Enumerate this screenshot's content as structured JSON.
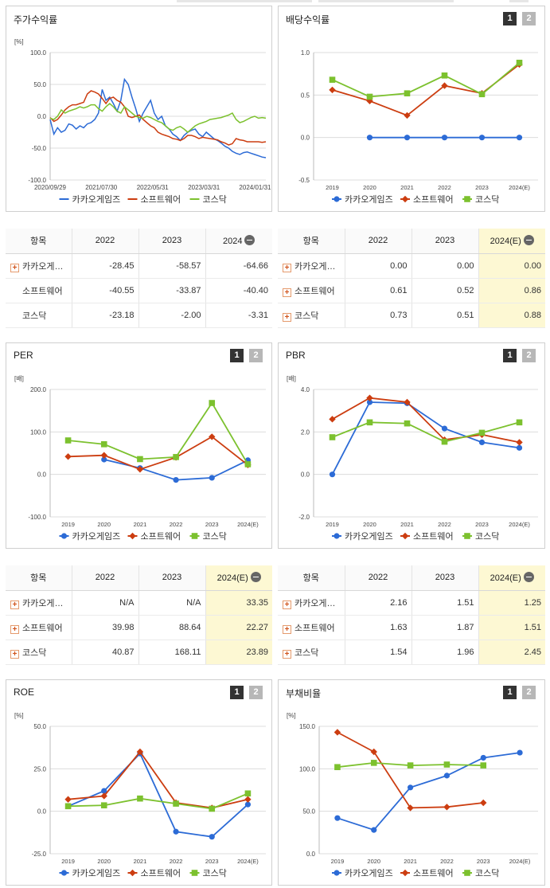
{
  "colors": {
    "kakao": "#2c6bd6",
    "software": "#cc3d10",
    "kosdaq": "#7cc12e"
  },
  "legend": [
    "카카오게임즈",
    "소프트웨어",
    "코스닥"
  ],
  "panels": {
    "stock": {
      "title": "주가수익률",
      "unit": "[%]"
    },
    "dividend": {
      "title": "배당수익률",
      "unit": "",
      "btn1": "1",
      "btn2": "2"
    },
    "per": {
      "title": "PER",
      "unit": "[배]",
      "btn1": "1",
      "btn2": "2"
    },
    "pbr": {
      "title": "PBR",
      "unit": "[배]",
      "btn1": "1",
      "btn2": "2"
    },
    "roe": {
      "title": "ROE",
      "unit": "[%]",
      "btn1": "1",
      "btn2": "2"
    },
    "debt": {
      "title": "부채비율",
      "unit": "[%]",
      "btn1": "1",
      "btn2": "2"
    }
  },
  "tables": {
    "stock": {
      "headers": [
        "항목",
        "2022",
        "2023",
        "2024"
      ],
      "rows": [
        {
          "name": "카카오게…",
          "values": [
            "-28.45",
            "-58.57",
            "-64.66"
          ]
        },
        {
          "name": "소프트웨어",
          "values": [
            "-40.55",
            "-33.87",
            "-40.40"
          ]
        },
        {
          "name": "코스닥",
          "values": [
            "-23.18",
            "-2.00",
            "-3.31"
          ]
        }
      ]
    },
    "dividend": {
      "headers": [
        "항목",
        "2022",
        "2023",
        "2024(E)"
      ],
      "rows": [
        {
          "name": "카카오게…",
          "values": [
            "0.00",
            "0.00",
            "0.00"
          ]
        },
        {
          "name": "소프트웨어",
          "values": [
            "0.61",
            "0.52",
            "0.86"
          ]
        },
        {
          "name": "코스닥",
          "values": [
            "0.73",
            "0.51",
            "0.88"
          ]
        }
      ]
    },
    "per": {
      "headers": [
        "항목",
        "2022",
        "2023",
        "2024(E)"
      ],
      "rows": [
        {
          "name": "카카오게…",
          "values": [
            "N/A",
            "N/A",
            "33.35"
          ]
        },
        {
          "name": "소프트웨어",
          "values": [
            "39.98",
            "88.64",
            "22.27"
          ]
        },
        {
          "name": "코스닥",
          "values": [
            "40.87",
            "168.11",
            "23.89"
          ]
        }
      ]
    },
    "pbr": {
      "headers": [
        "항목",
        "2022",
        "2023",
        "2024(E)"
      ],
      "rows": [
        {
          "name": "카카오게…",
          "values": [
            "2.16",
            "1.51",
            "1.25"
          ]
        },
        {
          "name": "소프트웨어",
          "values": [
            "1.63",
            "1.87",
            "1.51"
          ]
        },
        {
          "name": "코스닥",
          "values": [
            "1.54",
            "1.96",
            "2.45"
          ]
        }
      ]
    }
  },
  "chart_data": [
    {
      "id": "stock",
      "type": "line",
      "title": "주가수익률",
      "ylabel": "[%]",
      "ylim": [
        -100,
        100
      ],
      "yticks": [
        "100.0",
        "50.0",
        "0.0",
        "-50.0",
        "-100.0"
      ],
      "xticks": [
        "2020/09/29",
        "2021/07/30",
        "2022/05/31",
        "2023/03/31",
        "2024/01/31"
      ],
      "series": [
        {
          "name": "카카오게임즈",
          "values": [
            -5,
            -28,
            -18,
            -25,
            -22,
            -12,
            -14,
            -20,
            -15,
            -18,
            -12,
            -10,
            -5,
            5,
            42,
            25,
            30,
            20,
            8,
            25,
            58,
            50,
            30,
            12,
            -8,
            5,
            15,
            25,
            5,
            -5,
            0,
            -15,
            -20,
            -28,
            -32,
            -38,
            -30,
            -25,
            -22,
            -20,
            -28,
            -32,
            -25,
            -30,
            -35,
            -38,
            -42,
            -47,
            -50,
            -55,
            -58,
            -60,
            -57,
            -56,
            -58,
            -60,
            -62,
            -64,
            -65
          ]
        },
        {
          "name": "소프트웨어",
          "values": [
            -2,
            -8,
            -5,
            2,
            10,
            15,
            18,
            18,
            20,
            22,
            35,
            40,
            38,
            35,
            28,
            20,
            28,
            30,
            25,
            22,
            15,
            0,
            -2,
            0,
            2,
            -5,
            -10,
            -15,
            -18,
            -25,
            -28,
            -30,
            -32,
            -35,
            -36,
            -38,
            -35,
            -30,
            -30,
            -32,
            -35,
            -33,
            -34,
            -35,
            -36,
            -37,
            -40,
            -42,
            -45,
            -43,
            -35,
            -37,
            -38,
            -40,
            -40,
            -40,
            -40,
            -41,
            -40
          ]
        },
        {
          "name": "코스닥",
          "values": [
            -3,
            -5,
            0,
            10,
            5,
            8,
            10,
            12,
            15,
            13,
            15,
            18,
            18,
            12,
            8,
            15,
            20,
            15,
            8,
            5,
            15,
            10,
            5,
            0,
            -2,
            -3,
            0,
            -2,
            -5,
            -8,
            -10,
            -15,
            -20,
            -22,
            -18,
            -16,
            -20,
            -25,
            -20,
            -15,
            -12,
            -10,
            -8,
            -5,
            -4,
            -3,
            -2,
            0,
            2,
            5,
            -5,
            -10,
            -8,
            -5,
            -2,
            0,
            -3,
            -2,
            -3
          ]
        }
      ]
    },
    {
      "id": "dividend",
      "type": "line",
      "ylim": [
        -0.5,
        1.0
      ],
      "yticks": [
        "1.0",
        "0.5",
        "0.0",
        "-0.5"
      ],
      "categories": [
        "2019",
        "2020",
        "2021",
        "2022",
        "2023",
        "2024(E)"
      ],
      "series": [
        {
          "name": "카카오게임즈",
          "values": [
            null,
            0.0,
            0.0,
            0.0,
            0.0,
            0.0
          ]
        },
        {
          "name": "소프트웨어",
          "values": [
            0.56,
            0.43,
            0.26,
            0.61,
            0.52,
            0.86
          ]
        },
        {
          "name": "코스닥",
          "values": [
            0.68,
            0.48,
            0.52,
            0.73,
            0.51,
            0.88
          ]
        }
      ]
    },
    {
      "id": "per",
      "type": "line",
      "ylim": [
        -100,
        200
      ],
      "yticks": [
        "200.0",
        "100.0",
        "0.0",
        "-100.0"
      ],
      "categories": [
        "2019",
        "2020",
        "2021",
        "2022",
        "2023",
        "2024(E)"
      ],
      "series": [
        {
          "name": "카카오게임즈",
          "values": [
            null,
            35,
            15,
            -13,
            -8,
            33.35
          ]
        },
        {
          "name": "소프트웨어",
          "values": [
            42,
            45,
            12,
            39.98,
            88.64,
            22.27
          ]
        },
        {
          "name": "코스닥",
          "values": [
            80,
            71,
            36,
            40.87,
            168.11,
            23.89
          ]
        }
      ]
    },
    {
      "id": "pbr",
      "type": "line",
      "ylim": [
        -2,
        4
      ],
      "yticks": [
        "4.0",
        "2.0",
        "0.0",
        "-2.0"
      ],
      "categories": [
        "2019",
        "2020",
        "2021",
        "2022",
        "2023",
        "2024(E)"
      ],
      "series": [
        {
          "name": "카카오게임즈",
          "values": [
            0.0,
            3.4,
            3.35,
            2.16,
            1.51,
            1.25
          ]
        },
        {
          "name": "소프트웨어",
          "values": [
            2.6,
            3.6,
            3.4,
            1.63,
            1.87,
            1.51
          ]
        },
        {
          "name": "코스닥",
          "values": [
            1.75,
            2.45,
            2.4,
            1.54,
            1.96,
            2.45
          ]
        }
      ]
    },
    {
      "id": "roe",
      "type": "line",
      "ylim": [
        -25,
        50
      ],
      "yticks": [
        "50.0",
        "25.0",
        "0.0",
        "-25.0"
      ],
      "categories": [
        "2019",
        "2020",
        "2021",
        "2022",
        "2023",
        "2024(E)"
      ],
      "series": [
        {
          "name": "카카오게임즈",
          "values": [
            3,
            12,
            34,
            -12,
            -15,
            4
          ]
        },
        {
          "name": "소프트웨어",
          "values": [
            7,
            9,
            35,
            5,
            2,
            7
          ]
        },
        {
          "name": "코스닥",
          "values": [
            3,
            3.5,
            7.5,
            4.5,
            1.5,
            10.5
          ]
        }
      ]
    },
    {
      "id": "debt",
      "type": "line",
      "ylim": [
        0,
        150
      ],
      "yticks": [
        "150.0",
        "100.0",
        "50.0",
        "0.0"
      ],
      "categories": [
        "2019",
        "2020",
        "2021",
        "2022",
        "2023",
        "2024(E)"
      ],
      "series": [
        {
          "name": "카카오게임즈",
          "values": [
            42,
            28,
            78,
            92,
            113,
            119
          ]
        },
        {
          "name": "소프트웨어",
          "values": [
            143,
            120,
            54,
            55,
            60,
            null
          ]
        },
        {
          "name": "코스닥",
          "values": [
            102,
            107,
            104,
            105,
            104,
            null
          ]
        }
      ]
    }
  ]
}
